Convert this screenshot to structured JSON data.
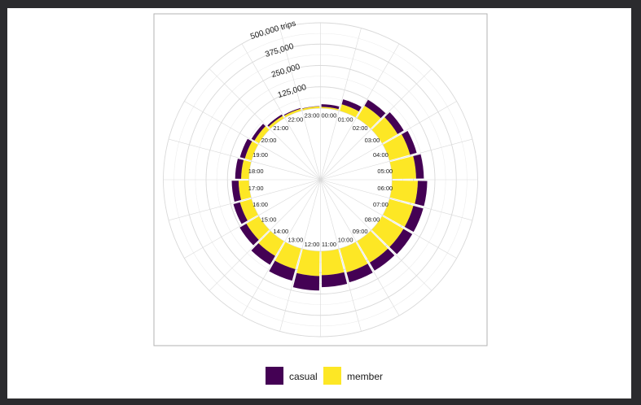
{
  "colors": {
    "casual": "#440154",
    "member": "#FDE725",
    "grid": "#d9d9d9",
    "panel_border": "#b3b3b3"
  },
  "chart_data": {
    "type": "bar",
    "coordinate_system": "polar",
    "stacked": true,
    "title": "",
    "xlabel": "",
    "ylabel": "",
    "categories": [
      "00:00",
      "01:00",
      "02:00",
      "03:00",
      "04:00",
      "05:00",
      "06:00",
      "07:00",
      "08:00",
      "09:00",
      "10:00",
      "11:00",
      "12:00",
      "13:00",
      "14:00",
      "15:00",
      "16:00",
      "17:00",
      "18:00",
      "19:00",
      "20:00",
      "21:00",
      "22:00",
      "23:00"
    ],
    "series": [
      {
        "name": "member",
        "values": [
          8000,
          40000,
          85000,
          105000,
          125000,
          140000,
          150000,
          145000,
          145000,
          145000,
          145000,
          140000,
          145000,
          125000,
          100000,
          85000,
          70000,
          60000,
          45000,
          40000,
          30000,
          15000,
          12000,
          10000
        ]
      },
      {
        "name": "casual",
        "values": [
          15000,
          30000,
          40000,
          42000,
          40000,
          45000,
          55000,
          60000,
          60000,
          55000,
          60000,
          70000,
          85000,
          70000,
          60000,
          45000,
          40000,
          40000,
          35000,
          30000,
          20000,
          10000,
          5000,
          2000
        ]
      }
    ],
    "ring_labels": [
      "125,000",
      "250,000",
      "375,000",
      "500,000 trips"
    ],
    "ylim": [
      0,
      500000
    ],
    "grid": true,
    "legend_position": "bottom"
  },
  "legend": {
    "casual_label": "casual",
    "member_label": "member"
  }
}
